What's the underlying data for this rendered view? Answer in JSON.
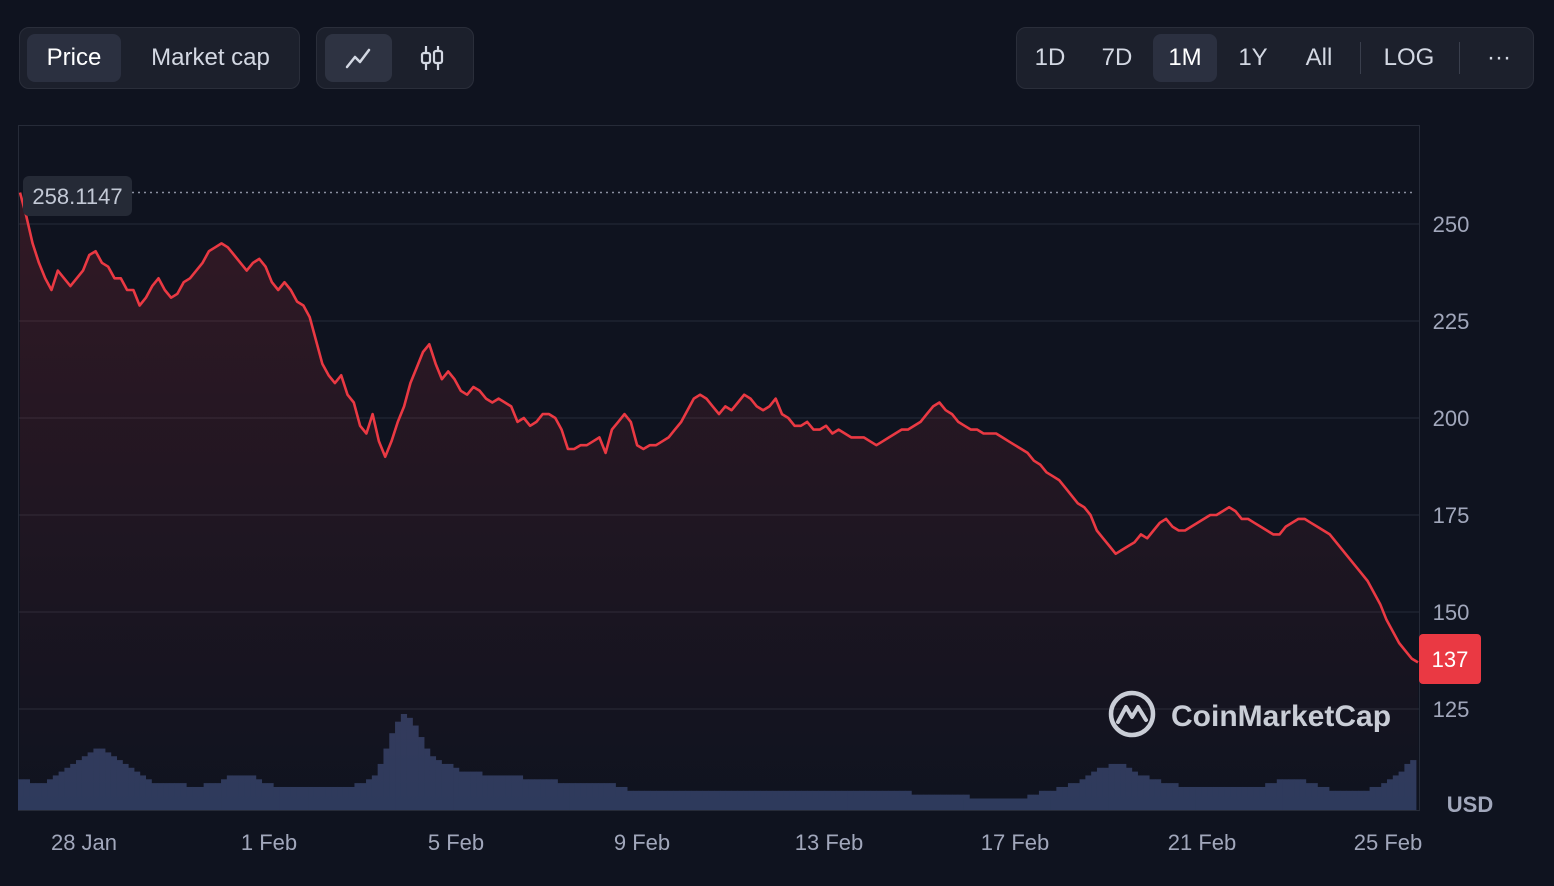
{
  "toolbar": {
    "metric_tabs": [
      "Price",
      "Market cap"
    ],
    "active_metric": "Price",
    "chart_types": [
      "line-chart-icon",
      "candlestick-icon"
    ],
    "active_chart_type": "line-chart-icon",
    "ranges": [
      "1D",
      "7D",
      "1M",
      "1Y",
      "All"
    ],
    "active_range": "1M",
    "log_label": "LOG",
    "more_label": "···"
  },
  "chart_data": {
    "type": "line",
    "x_ticks": [
      "28 Jan",
      "1 Feb",
      "5 Feb",
      "9 Feb",
      "13 Feb",
      "17 Feb",
      "21 Feb",
      "25 Feb"
    ],
    "y_ticks": [
      125,
      150,
      175,
      200,
      225,
      250
    ],
    "ylim": [
      117,
      272
    ],
    "y_unit": "USD",
    "grid": true,
    "high_label": "258.1147",
    "current_label": "137",
    "watermark": "CoinMarketCap",
    "colors": {
      "line": "#ea3943",
      "current_badge": "#ea3943",
      "volume": "#2e3a5c",
      "grid": "#262b38"
    },
    "series": [
      {
        "values": [
          258.1,
          252,
          245,
          240,
          236,
          233,
          238,
          236,
          234,
          236,
          238,
          242,
          243,
          240,
          239,
          236,
          236,
          233,
          233,
          229,
          231,
          234,
          236,
          233,
          231,
          232,
          235,
          236,
          238,
          240,
          243,
          244,
          245,
          244,
          242,
          240,
          238,
          240,
          241,
          239,
          235,
          233,
          235,
          233,
          230,
          229,
          226,
          220,
          214,
          211,
          209,
          211,
          206,
          204,
          198,
          196,
          201,
          194,
          190,
          194,
          199,
          203,
          209,
          213,
          217,
          219,
          214,
          210,
          212,
          210,
          207,
          206,
          208,
          207,
          205,
          204,
          205,
          204,
          203,
          199,
          200,
          198,
          199,
          201,
          201,
          200,
          197,
          192,
          192,
          193,
          193,
          194,
          195,
          191,
          197,
          199,
          201,
          199,
          193,
          192,
          193,
          193,
          194,
          195,
          197,
          199,
          202,
          205,
          206,
          205,
          203,
          201,
          203,
          202,
          204,
          206,
          205,
          203,
          202,
          203,
          205,
          201,
          200,
          198,
          198,
          199,
          197,
          197,
          198,
          196,
          197,
          196,
          195,
          195,
          195,
          194,
          193,
          194,
          195,
          196,
          197,
          197,
          198,
          199,
          201,
          203,
          204,
          202,
          201,
          199,
          198,
          197,
          197,
          196,
          196,
          196,
          195,
          194,
          193,
          192,
          191,
          189,
          188,
          186,
          185,
          184,
          182,
          180,
          178,
          177,
          175,
          171,
          169,
          167,
          165,
          166,
          167,
          168,
          170,
          169,
          171,
          173,
          174,
          172,
          171,
          171,
          172,
          173,
          174,
          175,
          175,
          176,
          177,
          176,
          174,
          174,
          173,
          172,
          171,
          170,
          170,
          172,
          173,
          174,
          174,
          173,
          172,
          171,
          170,
          168,
          166,
          164,
          162,
          160,
          158,
          155,
          152,
          148,
          145,
          142,
          140,
          138,
          137
        ]
      }
    ],
    "volume": [
      8,
      8,
      7,
      7,
      7,
      8,
      9,
      10,
      11,
      12,
      13,
      14,
      15,
      16,
      16,
      15,
      14,
      13,
      12,
      11,
      10,
      9,
      8,
      7,
      7,
      7,
      7,
      7,
      7,
      6,
      6,
      6,
      7,
      7,
      7,
      8,
      9,
      9,
      9,
      9,
      9,
      8,
      7,
      7,
      6,
      6,
      6,
      6,
      6,
      6,
      6,
      6,
      6,
      6,
      6,
      6,
      6,
      6,
      7,
      7,
      8,
      9,
      12,
      16,
      20,
      23,
      25,
      24,
      22,
      19,
      16,
      14,
      13,
      12,
      12,
      11,
      10,
      10,
      10,
      10,
      9,
      9,
      9,
      9,
      9,
      9,
      9,
      8,
      8,
      8,
      8,
      8,
      8,
      7,
      7,
      7,
      7,
      7,
      7,
      7,
      7,
      7,
      7,
      6,
      6,
      5,
      5,
      5,
      5,
      5,
      5,
      5,
      5,
      5,
      5,
      5,
      5,
      5,
      5,
      5,
      5,
      5,
      5,
      5,
      5,
      5,
      5,
      5,
      5,
      5,
      5,
      5,
      5,
      5,
      5,
      5,
      5,
      5,
      5,
      5,
      5,
      5,
      5,
      5,
      5,
      5,
      5,
      5,
      5,
      5,
      5,
      5,
      5,
      5,
      4,
      4,
      4,
      4,
      4,
      4,
      4,
      4,
      4,
      4,
      3,
      3,
      3,
      3,
      3,
      3,
      3,
      3,
      3,
      3,
      4,
      4,
      5,
      5,
      5,
      6,
      6,
      7,
      7,
      8,
      9,
      10,
      11,
      11,
      12,
      12,
      12,
      11,
      10,
      9,
      9,
      8,
      8,
      7,
      7,
      7,
      6,
      6,
      6,
      6,
      6,
      6,
      6,
      6,
      6,
      6,
      6,
      6,
      6,
      6,
      6,
      7,
      7,
      8,
      8,
      8,
      8,
      8,
      7,
      7,
      6,
      6,
      5,
      5,
      5,
      5,
      5,
      5,
      5,
      6,
      6,
      7,
      8,
      9,
      10,
      12,
      13
    ]
  },
  "copy": {
    "y_unit_label": "USD"
  }
}
